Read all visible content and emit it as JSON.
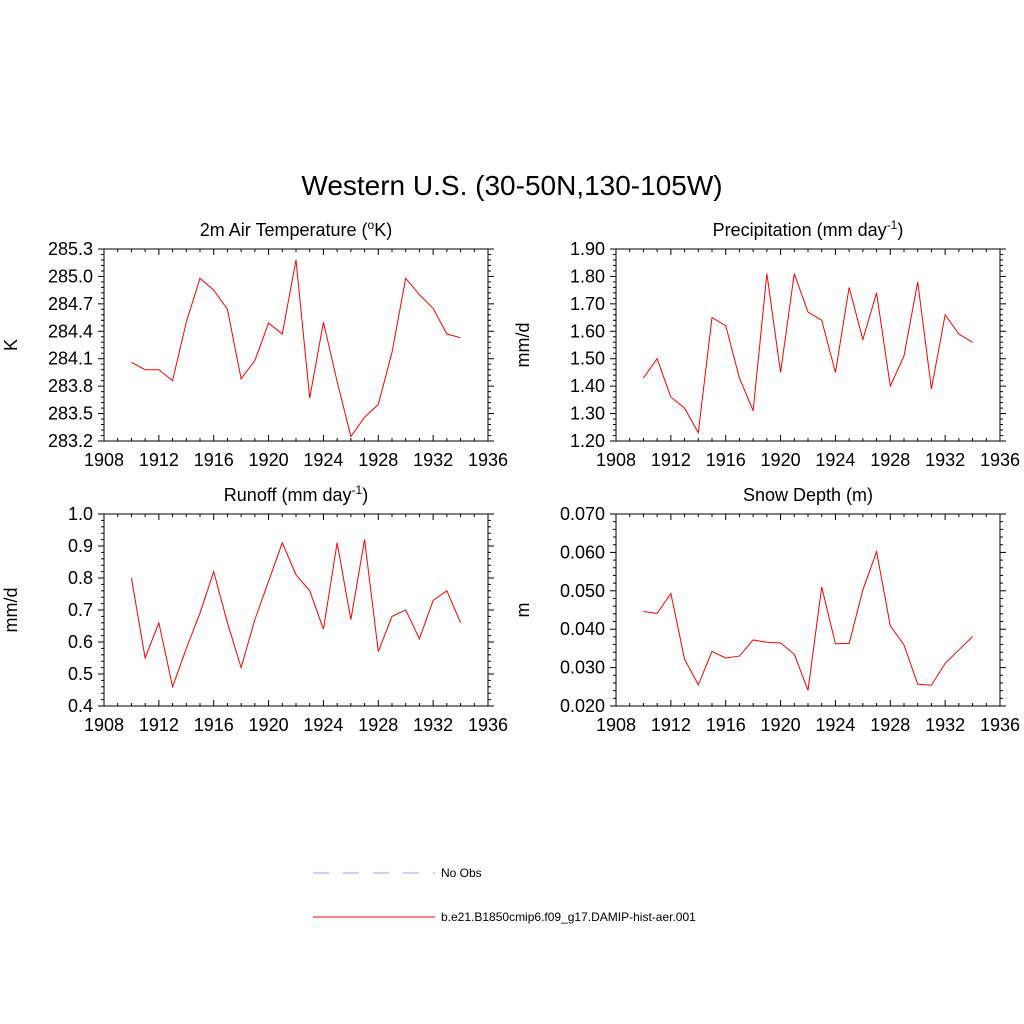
{
  "title": "Western U.S. (30-50N,130-105W)",
  "legend": {
    "items": [
      {
        "label": "No Obs",
        "color": "#9999ff",
        "dash": true
      },
      {
        "label": "b.e21.B1850cmip6.f09_g17.DAMIP-hist-aer.001",
        "color": "#ff0000",
        "dash": false
      }
    ]
  },
  "chart_data": [
    {
      "type": "line",
      "title": "2m Air Temperature (",
      "title_sup": "o",
      "title_after": "K)",
      "ylabel": "K",
      "xlim": [
        1908,
        1936
      ],
      "ylim": [
        283.2,
        285.3
      ],
      "xticks": [
        1908,
        1912,
        1916,
        1920,
        1924,
        1928,
        1932,
        1936
      ],
      "yticks": [
        "283.2",
        "283.5",
        "283.8",
        "284.1",
        "284.4",
        "284.7",
        "285.0",
        "285.3"
      ],
      "ytick_values": [
        283.2,
        283.5,
        283.8,
        284.1,
        284.4,
        284.7,
        285.0,
        285.3
      ],
      "x": [
        1910,
        1911,
        1912,
        1913,
        1914,
        1915,
        1916,
        1917,
        1918,
        1919,
        1920,
        1921,
        1922,
        1923,
        1924,
        1925,
        1926,
        1927,
        1928,
        1929,
        1930,
        1931,
        1932,
        1933,
        1934
      ],
      "series": [
        {
          "name": "b.e21.B1850cmip6.f09_g17.DAMIP-hist-aer.001",
          "values": [
            284.06,
            283.98,
            283.98,
            283.86,
            284.5,
            284.98,
            284.85,
            284.64,
            283.88,
            284.08,
            284.49,
            284.37,
            285.18,
            283.67,
            284.5,
            283.85,
            283.25,
            283.46,
            283.6,
            284.17,
            284.98,
            284.8,
            284.65,
            284.37,
            284.33
          ]
        }
      ]
    },
    {
      "type": "line",
      "title": "Precipitation (mm day",
      "title_sup": "-1",
      "title_after": ")",
      "ylabel": "mm/d",
      "xlim": [
        1908,
        1936
      ],
      "ylim": [
        1.2,
        1.9
      ],
      "xticks": [
        1908,
        1912,
        1916,
        1920,
        1924,
        1928,
        1932,
        1936
      ],
      "yticks": [
        "1.20",
        "1.30",
        "1.40",
        "1.50",
        "1.60",
        "1.70",
        "1.80",
        "1.90"
      ],
      "ytick_values": [
        1.2,
        1.3,
        1.4,
        1.5,
        1.6,
        1.7,
        1.8,
        1.9
      ],
      "x": [
        1910,
        1911,
        1912,
        1913,
        1914,
        1915,
        1916,
        1917,
        1918,
        1919,
        1920,
        1921,
        1922,
        1923,
        1924,
        1925,
        1926,
        1927,
        1928,
        1929,
        1930,
        1931,
        1932,
        1933,
        1934
      ],
      "series": [
        {
          "name": "b.e21.B1850cmip6.f09_g17.DAMIP-hist-aer.001",
          "values": [
            1.43,
            1.5,
            1.36,
            1.32,
            1.23,
            1.65,
            1.62,
            1.43,
            1.31,
            1.81,
            1.45,
            1.81,
            1.67,
            1.64,
            1.45,
            1.76,
            1.57,
            1.74,
            1.4,
            1.51,
            1.78,
            1.39,
            1.66,
            1.59,
            1.56
          ]
        }
      ]
    },
    {
      "type": "line",
      "title": "Runoff (mm day",
      "title_sup": "-1",
      "title_after": ")",
      "ylabel": "mm/d",
      "xlim": [
        1908,
        1936
      ],
      "ylim": [
        0.4,
        1.0
      ],
      "xticks": [
        1908,
        1912,
        1916,
        1920,
        1924,
        1928,
        1932,
        1936
      ],
      "yticks": [
        "0.4",
        "0.5",
        "0.6",
        "0.7",
        "0.8",
        "0.9",
        "1.0"
      ],
      "ytick_values": [
        0.4,
        0.5,
        0.6,
        0.7,
        0.8,
        0.9,
        1.0
      ],
      "x": [
        1910,
        1911,
        1912,
        1913,
        1914,
        1915,
        1916,
        1917,
        1918,
        1919,
        1920,
        1921,
        1922,
        1923,
        1924,
        1925,
        1926,
        1927,
        1928,
        1929,
        1930,
        1931,
        1932,
        1933,
        1934
      ],
      "series": [
        {
          "name": "b.e21.B1850cmip6.f09_g17.DAMIP-hist-aer.001",
          "values": [
            0.8,
            0.55,
            0.66,
            0.46,
            0.58,
            0.69,
            0.82,
            0.66,
            0.52,
            0.67,
            0.79,
            0.91,
            0.81,
            0.76,
            0.64,
            0.91,
            0.67,
            0.92,
            0.57,
            0.68,
            0.7,
            0.61,
            0.73,
            0.76,
            0.66
          ]
        }
      ]
    },
    {
      "type": "line",
      "title": "Snow Depth (m)",
      "title_sup": "",
      "title_after": "",
      "ylabel": "m",
      "xlim": [
        1908,
        1936
      ],
      "ylim": [
        0.02,
        0.07
      ],
      "xticks": [
        1908,
        1912,
        1916,
        1920,
        1924,
        1928,
        1932,
        1936
      ],
      "yticks": [
        "0.020",
        "0.030",
        "0.040",
        "0.050",
        "0.060",
        "0.070"
      ],
      "ytick_values": [
        0.02,
        0.03,
        0.04,
        0.05,
        0.06,
        0.07
      ],
      "x": [
        1910,
        1911,
        1912,
        1913,
        1914,
        1915,
        1916,
        1917,
        1918,
        1919,
        1920,
        1921,
        1922,
        1923,
        1924,
        1925,
        1926,
        1927,
        1928,
        1929,
        1930,
        1931,
        1932,
        1933,
        1934
      ],
      "series": [
        {
          "name": "b.e21.B1850cmip6.f09_g17.DAMIP-hist-aer.001",
          "values": [
            0.0446,
            0.0441,
            0.0493,
            0.0322,
            0.0255,
            0.0342,
            0.0325,
            0.033,
            0.0372,
            0.0366,
            0.0364,
            0.0335,
            0.0241,
            0.051,
            0.0362,
            0.0363,
            0.0502,
            0.0602,
            0.0409,
            0.0359,
            0.0257,
            0.0254,
            0.0311,
            0.0346,
            0.0381
          ]
        }
      ]
    }
  ]
}
